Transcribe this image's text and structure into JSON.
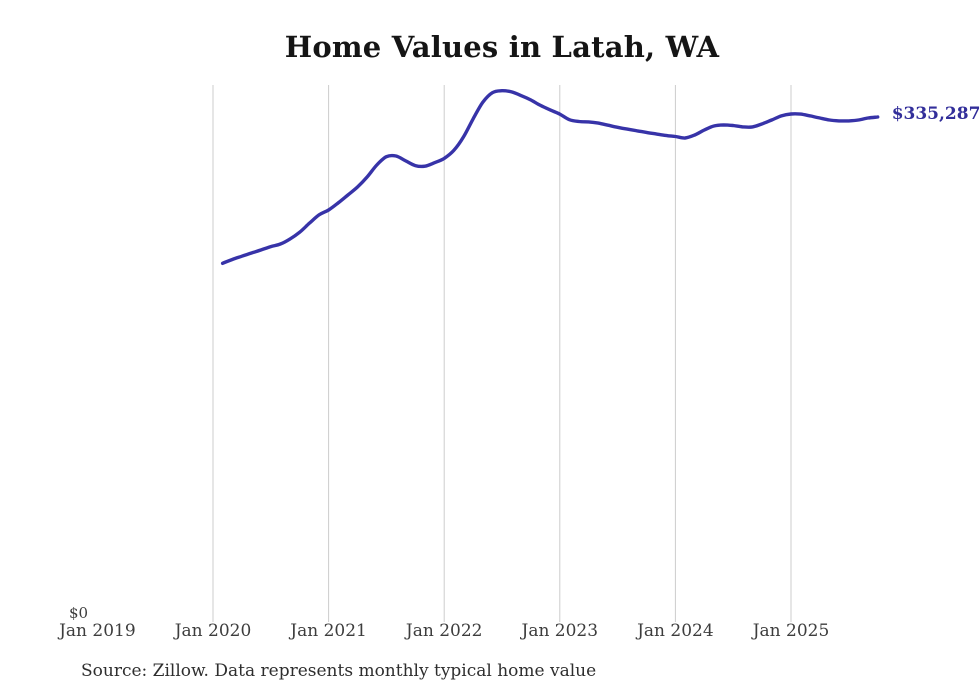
{
  "title": "Home Values in Latah, WA",
  "source_note": "Source: Zillow. Data represents monthly typical home value",
  "colors": {
    "line": "#3733a8",
    "value_label": "#322e9a",
    "grid": "#cccccc",
    "axis_text": "#3d3d3d",
    "title_text": "#151515",
    "source_text": "#2e2e2e",
    "background": "#ffffff"
  },
  "chart_data": {
    "type": "line",
    "title": "Home Values in Latah, WA",
    "xlabel": "",
    "ylabel": "",
    "ylim": [
      0,
      356000
    ],
    "grid": "vertical-only",
    "legend": "none",
    "y_zero_label": "$0",
    "last_value_label": "$335,287",
    "x_tick_labels": [
      "Jan 2019",
      "Jan 2020",
      "Jan 2021",
      "Jan 2022",
      "Jan 2023",
      "Jan 2024",
      "Jan 2025"
    ],
    "gridlines_at": [
      "Jan 2020",
      "Jan 2021",
      "Jan 2022",
      "Jan 2023",
      "Jan 2024",
      "Jan 2025"
    ],
    "series": [
      {
        "name": "Monthly typical home value",
        "months": [
          "2020-02",
          "2020-03",
          "2020-04",
          "2020-05",
          "2020-06",
          "2020-07",
          "2020-08",
          "2020-09",
          "2020-10",
          "2020-11",
          "2020-12",
          "2021-01",
          "2021-02",
          "2021-03",
          "2021-04",
          "2021-05",
          "2021-06",
          "2021-07",
          "2021-08",
          "2021-09",
          "2021-10",
          "2021-11",
          "2021-12",
          "2022-01",
          "2022-02",
          "2022-03",
          "2022-04",
          "2022-05",
          "2022-06",
          "2022-07",
          "2022-08",
          "2022-09",
          "2022-10",
          "2022-11",
          "2022-12",
          "2023-01",
          "2023-02",
          "2023-03",
          "2023-04",
          "2023-05",
          "2023-06",
          "2023-07",
          "2023-08",
          "2023-09",
          "2023-10",
          "2023-11",
          "2023-12",
          "2024-01",
          "2024-02",
          "2024-03",
          "2024-04",
          "2024-05",
          "2024-06",
          "2024-07",
          "2024-08",
          "2024-09",
          "2024-10",
          "2024-11",
          "2024-12",
          "2025-01",
          "2025-02",
          "2025-03",
          "2025-04",
          "2025-05",
          "2025-06",
          "2025-07",
          "2025-08",
          "2025-09",
          "2025-10"
        ],
        "values": [
          237800,
          240300,
          242500,
          244600,
          246700,
          248900,
          250600,
          254000,
          258500,
          264400,
          270000,
          273300,
          278000,
          283300,
          288600,
          295300,
          303300,
          308800,
          309300,
          306000,
          302900,
          302500,
          304800,
          307700,
          313000,
          322000,
          334000,
          345000,
          351500,
          352800,
          352000,
          349500,
          346600,
          343000,
          340000,
          337200,
          333500,
          332300,
          332000,
          331200,
          329800,
          328400,
          327200,
          326100,
          325000,
          324000,
          323000,
          322300,
          321300,
          323300,
          326600,
          329300,
          330000,
          329600,
          328700,
          328700,
          330700,
          333300,
          336000,
          337300,
          337200,
          336000,
          334600,
          333300,
          332700,
          332700,
          333300,
          334600,
          335287
        ]
      }
    ]
  }
}
